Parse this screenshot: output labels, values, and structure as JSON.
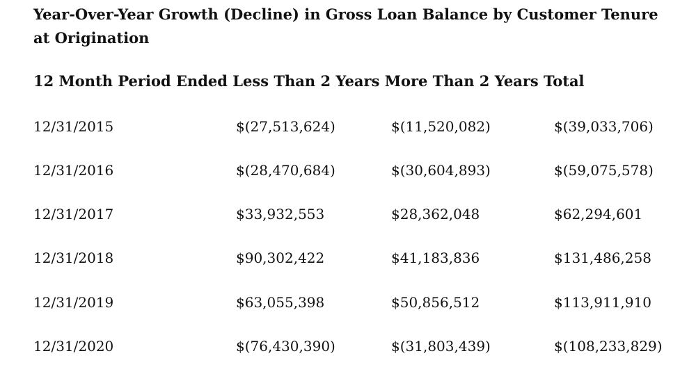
{
  "title": "Year-Over-Year Growth (Decline) in Gross Loan Balance by Customer Tenure at Origination",
  "header_line": "12 Month Period Ended Less Than 2 Years More Than 2 Years Total",
  "rows": [
    {
      "period": "12/31/2015",
      "less_than_2": "$(27,513,624)",
      "more_than_2": "$(11,520,082)",
      "total": "$(39,033,706)"
    },
    {
      "period": "12/31/2016",
      "less_than_2": "$(28,470,684)",
      "more_than_2": "$(30,604,893)",
      "total": "$(59,075,578)"
    },
    {
      "period": "12/31/2017",
      "less_than_2": "$33,932,553",
      "more_than_2": "$28,362,048",
      "total": "$62,294,601"
    },
    {
      "period": "12/31/2018",
      "less_than_2": "$90,302,422",
      "more_than_2": "$41,183,836",
      "total": "$131,486,258"
    },
    {
      "period": "12/31/2019",
      "less_than_2": "$63,055,398",
      "more_than_2": "$50,856,512",
      "total": "$113,911,910"
    },
    {
      "period": "12/31/2020",
      "less_than_2": "$(76,430,390)",
      "more_than_2": "$(31,803,439)",
      "total": "$(108,233,829)"
    }
  ]
}
